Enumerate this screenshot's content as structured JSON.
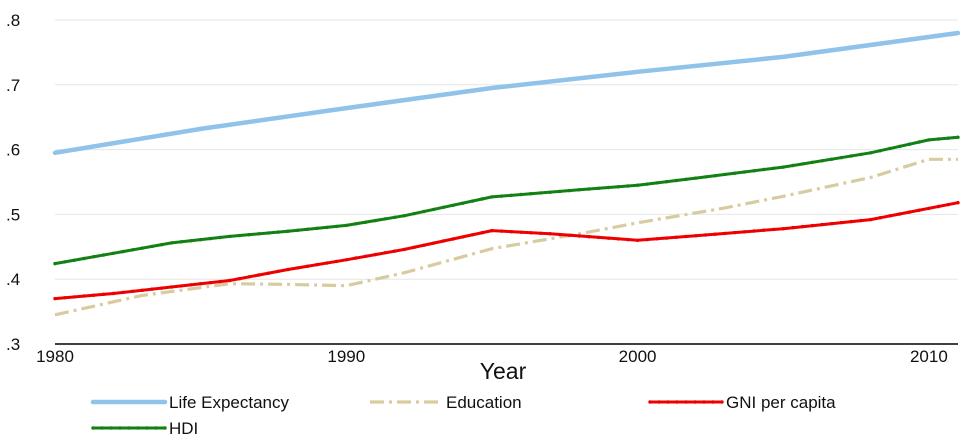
{
  "chart_data": {
    "type": "line",
    "xlabel": "Year",
    "ylabel": "",
    "xlim": [
      1980,
      2011
    ],
    "ylim": [
      0.3,
      0.8
    ],
    "x_ticks": [
      1980,
      1990,
      2000,
      2010
    ],
    "y_ticks": [
      0.3,
      0.4,
      0.5,
      0.6,
      0.7,
      0.8
    ],
    "y_tick_labels": [
      ".3",
      ".4",
      ".5",
      ".6",
      ".7",
      ".8"
    ],
    "grid": "horizontal",
    "legend_position": "bottom",
    "series": [
      {
        "name": "Life Expectancy",
        "color": "#8fc3ea",
        "style": "solid",
        "x": [
          1980,
          1985,
          1990,
          1995,
          2000,
          2005,
          2011
        ],
        "values": [
          0.595,
          0.632,
          0.664,
          0.695,
          0.72,
          0.743,
          0.78
        ]
      },
      {
        "name": "Education",
        "color": "#d9cba0",
        "style": "dash-dot",
        "x": [
          1980,
          1983,
          1986,
          1988,
          1990,
          1992,
          1995,
          1998,
          2000,
          2003,
          2005,
          2008,
          2010,
          2011
        ],
        "values": [
          0.345,
          0.375,
          0.393,
          0.392,
          0.39,
          0.41,
          0.447,
          0.47,
          0.487,
          0.51,
          0.528,
          0.557,
          0.585,
          0.585
        ]
      },
      {
        "name": "GNI per capita",
        "color": "#ee0000",
        "style": "solid-dots",
        "x": [
          1980,
          1982,
          1984,
          1986,
          1988,
          1990,
          1992,
          1995,
          1997,
          2000,
          2002,
          2005,
          2008,
          2011
        ],
        "values": [
          0.37,
          0.378,
          0.388,
          0.398,
          0.415,
          0.43,
          0.446,
          0.475,
          0.47,
          0.46,
          0.467,
          0.478,
          0.492,
          0.518
        ]
      },
      {
        "name": "HDI",
        "color": "#128012",
        "style": "solid-dots",
        "x": [
          1980,
          1982,
          1984,
          1986,
          1988,
          1990,
          1992,
          1995,
          1998,
          2000,
          2002,
          2005,
          2008,
          2010,
          2011
        ],
        "values": [
          0.424,
          0.44,
          0.456,
          0.466,
          0.474,
          0.483,
          0.498,
          0.527,
          0.538,
          0.545,
          0.556,
          0.573,
          0.595,
          0.615,
          0.619
        ]
      }
    ]
  }
}
